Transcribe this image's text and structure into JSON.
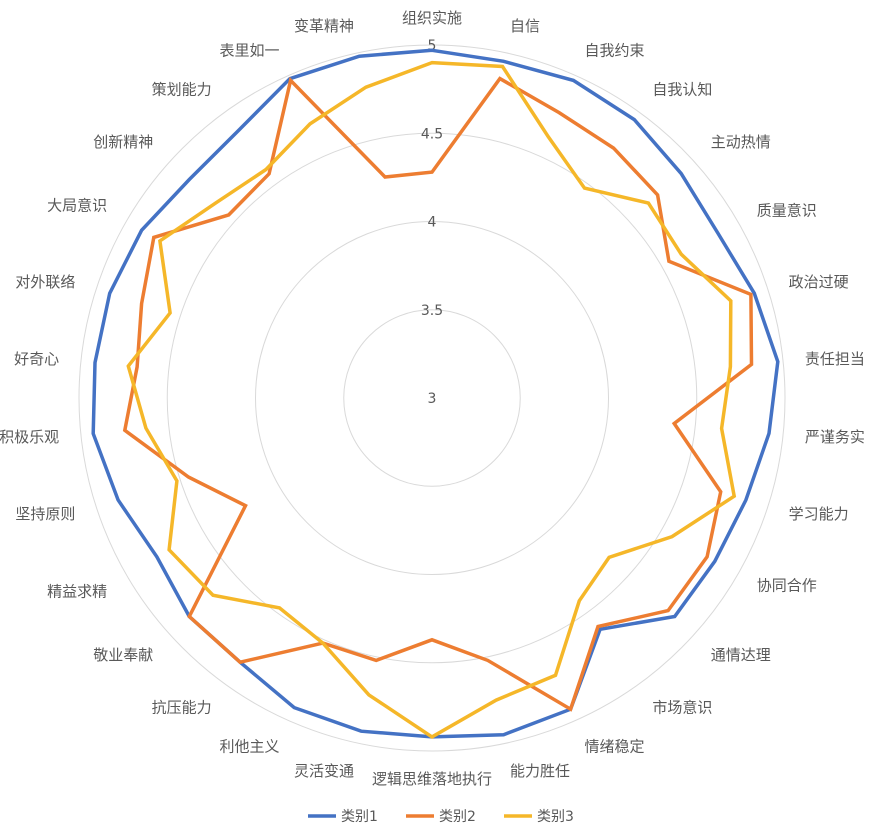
{
  "chart_data": {
    "type": "radar",
    "categories": [
      "组织实施",
      "自信",
      "自我约束",
      "自我认知",
      "主动热情",
      "质量意识",
      "政治过硬",
      "责任担当",
      "严谨务实",
      "学习能力",
      "协同合作",
      "通情达理",
      "市场意识",
      "情绪稳定",
      "能力胜任",
      "逻辑思维落地执行",
      "灵活变通",
      "利他主义",
      "抗压能力",
      "敬业奉献",
      "精益求精",
      "坚持原则",
      "积极乐观",
      "好奇心",
      "对外联络",
      "大局意识",
      "创新精神",
      "策划能力",
      "表里如一",
      "变革精神"
    ],
    "r_ticks": [
      "3",
      "3.5",
      "4",
      "4.5",
      "5"
    ],
    "r_range": [
      3,
      5
    ],
    "series": [
      {
        "name": "类别1",
        "color": "#4472C4",
        "values": [
          4.97,
          4.95,
          4.97,
          4.95,
          4.9,
          4.87,
          4.92,
          4.97,
          4.92,
          4.87,
          4.85,
          4.85,
          4.62,
          4.93,
          4.95,
          4.92,
          4.93,
          4.92,
          4.85,
          4.85,
          4.8,
          4.87,
          4.93,
          4.92,
          4.92,
          4.9,
          4.85,
          4.87,
          4.98,
          4.98
        ]
      },
      {
        "name": "类别2",
        "color": "#ED7D31",
        "values": [
          4.28,
          4.85,
          4.77,
          4.75,
          4.72,
          4.55,
          4.9,
          4.82,
          4.38,
          4.72,
          4.8,
          4.8,
          4.6,
          4.93,
          4.52,
          4.37,
          4.52,
          4.52,
          4.85,
          4.85,
          4.22,
          4.45,
          4.75,
          4.68,
          4.73,
          4.82,
          4.55,
          4.57,
          4.97,
          4.28
        ]
      },
      {
        "name": "类别3",
        "color": "#F5B729",
        "values": [
          4.9,
          4.92,
          4.62,
          4.47,
          4.65,
          4.63,
          4.78,
          4.7,
          4.65,
          4.8,
          4.57,
          4.35,
          4.42,
          4.72,
          4.75,
          4.92,
          4.72,
          4.52,
          4.47,
          4.67,
          4.72,
          4.52,
          4.63,
          4.73,
          4.56,
          4.78,
          4.65,
          4.6,
          4.7,
          4.8
        ]
      }
    ],
    "legend_position": "bottom"
  }
}
